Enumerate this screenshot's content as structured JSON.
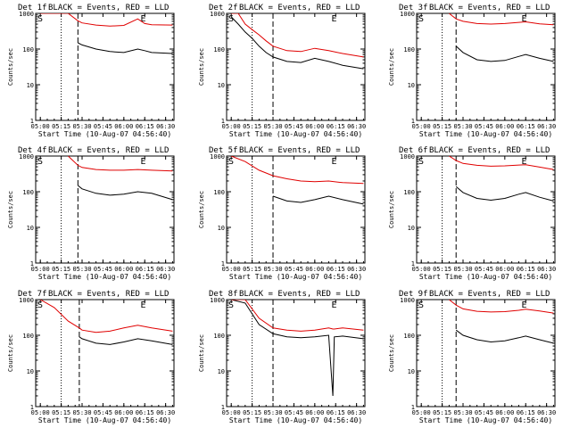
{
  "colors": {
    "events": "#000000",
    "lld": "#e00000",
    "axis": "#000000",
    "background": "#ffffff"
  },
  "panel_title_suffix": "BLACK = Events, RED = LLD",
  "shared": {
    "xlabel": "Start Time (10-Aug-07 04:56:40)",
    "ylabel": "Counts/sec",
    "xticks": [
      "05:00",
      "05:15",
      "05:30",
      "05:45",
      "06:00",
      "06:15",
      "06:30"
    ],
    "yticks": [
      "1",
      "10",
      "100",
      "1000"
    ],
    "xlim": [
      "04:56:40",
      "06:36:00"
    ],
    "ylim": [
      1,
      1000
    ],
    "yscale": "log",
    "markers": [
      "S",
      "E"
    ],
    "dotted_line_time": "05:15",
    "dashed_line_time": "05:27"
  },
  "chart_data": [
    {
      "type": "line",
      "title": "Det 1f",
      "xlabel": "Start Time (10-Aug-07 04:56:40)",
      "ylabel": "Counts/sec",
      "dotted_line_time": "05:15",
      "dashed_line_time": "05:27",
      "x": [
        "05:00",
        "05:10",
        "05:20",
        "05:27",
        "05:30",
        "05:40",
        "05:50",
        "06:00",
        "06:10",
        "06:15",
        "06:20",
        "06:35"
      ],
      "series": [
        {
          "name": "Events",
          "values": [
            null,
            null,
            null,
            150,
            130,
            100,
            85,
            80,
            100,
            90,
            80,
            75
          ]
        },
        {
          "name": "LLD",
          "values": [
            1000,
            1000,
            1000,
            620,
            540,
            470,
            440,
            460,
            700,
            520,
            480,
            470
          ]
        }
      ]
    },
    {
      "type": "line",
      "title": "Det 2f",
      "xlabel": "Start Time (10-Aug-07 04:56:40)",
      "ylabel": "Counts/sec",
      "dotted_line_time": "05:15",
      "dashed_line_time": "05:30",
      "x": [
        "05:00",
        "05:05",
        "05:10",
        "05:15",
        "05:20",
        "05:25",
        "05:30",
        "05:40",
        "05:50",
        "06:00",
        "06:10",
        "06:20",
        "06:35"
      ],
      "series": [
        {
          "name": "Events",
          "values": [
            800,
            500,
            300,
            200,
            120,
            80,
            60,
            45,
            42,
            55,
            45,
            35,
            28
          ]
        },
        {
          "name": "LLD",
          "values": [
            1000,
            1000,
            500,
            350,
            250,
            170,
            120,
            90,
            85,
            105,
            90,
            75,
            60
          ]
        }
      ]
    },
    {
      "type": "line",
      "title": "Det 3f",
      "xlabel": "Start Time (10-Aug-07 04:56:40)",
      "ylabel": "Counts/sec",
      "dotted_line_time": "05:15",
      "dashed_line_time": "05:25",
      "x": [
        "05:20",
        "05:25",
        "05:30",
        "05:40",
        "05:50",
        "06:00",
        "06:10",
        "06:15",
        "06:25",
        "06:35"
      ],
      "series": [
        {
          "name": "Events",
          "values": [
            null,
            120,
            80,
            50,
            45,
            48,
            62,
            70,
            55,
            45
          ]
        },
        {
          "name": "LLD",
          "values": [
            1000,
            700,
            600,
            520,
            500,
            520,
            560,
            580,
            510,
            480
          ]
        }
      ]
    },
    {
      "type": "line",
      "title": "Det 4f",
      "xlabel": "Start Time (10-Aug-07 04:56:40)",
      "ylabel": "Counts/sec",
      "dotted_line_time": "05:15",
      "dashed_line_time": "05:27",
      "x": [
        "05:20",
        "05:27",
        "05:30",
        "05:40",
        "05:50",
        "06:00",
        "06:10",
        "06:20",
        "06:35"
      ],
      "series": [
        {
          "name": "Events",
          "values": [
            null,
            150,
            120,
            90,
            80,
            85,
            100,
            90,
            60
          ]
        },
        {
          "name": "LLD",
          "values": [
            1000,
            550,
            480,
            420,
            400,
            400,
            420,
            400,
            380
          ]
        }
      ]
    },
    {
      "type": "line",
      "title": "Det 5f",
      "xlabel": "Start Time (10-Aug-07 04:56:40)",
      "ylabel": "Counts/sec",
      "dotted_line_time": "05:15",
      "dashed_line_time": "05:30",
      "x": [
        "05:00",
        "05:10",
        "05:20",
        "05:30",
        "05:40",
        "05:50",
        "06:00",
        "06:10",
        "06:20",
        "06:35"
      ],
      "series": [
        {
          "name": "Events",
          "values": [
            null,
            null,
            null,
            75,
            55,
            50,
            60,
            75,
            60,
            45
          ]
        },
        {
          "name": "LLD",
          "values": [
            1000,
            700,
            400,
            280,
            230,
            200,
            190,
            200,
            180,
            170
          ]
        }
      ]
    },
    {
      "type": "line",
      "title": "Det 6f",
      "xlabel": "Start Time (10-Aug-07 04:56:40)",
      "ylabel": "Counts/sec",
      "dotted_line_time": "05:15",
      "dashed_line_time": "05:25",
      "x": [
        "05:20",
        "05:25",
        "05:30",
        "05:40",
        "05:50",
        "06:00",
        "06:10",
        "06:15",
        "06:25",
        "06:35"
      ],
      "series": [
        {
          "name": "Events",
          "values": [
            null,
            140,
            95,
            65,
            58,
            65,
            85,
            95,
            70,
            55
          ]
        },
        {
          "name": "LLD",
          "values": [
            1000,
            750,
            620,
            550,
            520,
            530,
            560,
            570,
            490,
            420
          ]
        }
      ]
    },
    {
      "type": "line",
      "title": "Det 7f",
      "xlabel": "Start Time (10-Aug-07 04:56:40)",
      "ylabel": "Counts/sec",
      "dotted_line_time": "05:15",
      "dashed_line_time": "05:28",
      "x": [
        "05:00",
        "05:10",
        "05:20",
        "05:28",
        "05:30",
        "05:40",
        "05:50",
        "06:00",
        "06:10",
        "06:20",
        "06:35"
      ],
      "series": [
        {
          "name": "Events",
          "values": [
            null,
            null,
            null,
            90,
            80,
            60,
            55,
            65,
            80,
            70,
            55
          ]
        },
        {
          "name": "LLD",
          "values": [
            1000,
            600,
            250,
            160,
            140,
            120,
            130,
            160,
            190,
            160,
            130
          ]
        }
      ]
    },
    {
      "type": "line",
      "title": "Det 8f",
      "xlabel": "Start Time (10-Aug-07 04:56:40)",
      "ylabel": "Counts/sec",
      "dotted_line_time": "05:15",
      "dashed_line_time": "05:30",
      "x": [
        "05:00",
        "05:10",
        "05:20",
        "05:30",
        "05:40",
        "05:50",
        "06:00",
        "06:10",
        "06:13",
        "06:14",
        "06:20",
        "06:35"
      ],
      "series": [
        {
          "name": "Events",
          "values": [
            1000,
            800,
            200,
            110,
            90,
            85,
            90,
            100,
            2,
            90,
            95,
            80
          ]
        },
        {
          "name": "LLD",
          "values": [
            1000,
            1000,
            300,
            160,
            140,
            130,
            140,
            160,
            150,
            150,
            160,
            140
          ]
        }
      ]
    },
    {
      "type": "line",
      "title": "Det 9f",
      "xlabel": "Start Time (10-Aug-07 04:56:40)",
      "ylabel": "Counts/sec",
      "dotted_line_time": "05:15",
      "dashed_line_time": "05:25",
      "x": [
        "05:20",
        "05:25",
        "05:30",
        "05:40",
        "05:50",
        "06:00",
        "06:10",
        "06:15",
        "06:25",
        "06:35"
      ],
      "series": [
        {
          "name": "Events",
          "values": [
            null,
            140,
            100,
            75,
            65,
            70,
            85,
            95,
            75,
            60
          ]
        },
        {
          "name": "LLD",
          "values": [
            1000,
            700,
            550,
            470,
            450,
            460,
            500,
            540,
            480,
            420
          ]
        }
      ]
    }
  ]
}
